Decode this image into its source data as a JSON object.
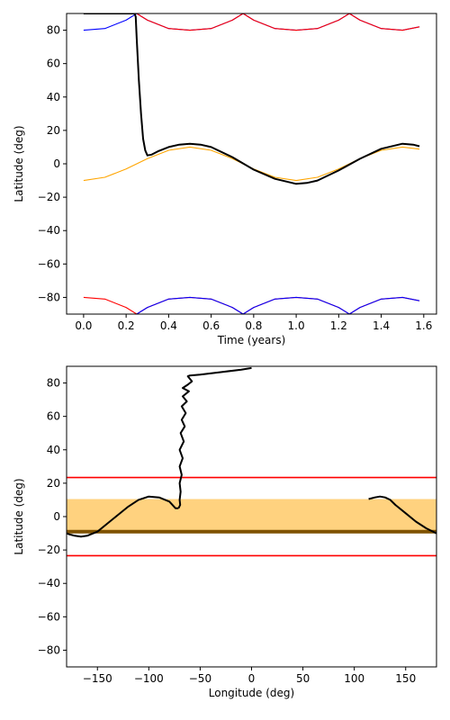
{
  "chart_data": [
    {
      "type": "line",
      "xlabel": "Time (years)",
      "ylabel": "Latitude (deg)",
      "xlim": [
        -0.08,
        1.66
      ],
      "ylim": [
        -90,
        90
      ],
      "xticks": [
        0.0,
        0.2,
        0.4,
        0.6,
        0.8,
        1.0,
        1.2,
        1.4,
        1.6
      ],
      "xtick_labels": [
        "0.0",
        "0.2",
        "0.4",
        "0.6",
        "0.8",
        "1.0",
        "1.2",
        "1.4",
        "1.6"
      ],
      "yticks": [
        -80,
        -60,
        -40,
        -20,
        0,
        20,
        40,
        60,
        80
      ],
      "ytick_labels": [
        "−80",
        "−60",
        "−40",
        "−20",
        "0",
        "20",
        "40",
        "60",
        "80"
      ],
      "grid": false,
      "series": [
        {
          "color": "#0000ff",
          "style": "northern boundary (blue)",
          "x": [
            0.0,
            0.1,
            0.2,
            0.25,
            0.3,
            0.4,
            0.5,
            0.6,
            0.7,
            0.75,
            0.8,
            0.9,
            1.0,
            1.1,
            1.2,
            1.25,
            1.3,
            1.4,
            1.5,
            1.58
          ],
          "y": [
            80,
            81,
            86,
            90,
            86,
            81,
            80,
            81,
            86,
            90,
            86,
            81,
            80,
            81,
            86,
            90,
            86,
            81,
            80,
            82
          ]
        },
        {
          "color": "#ff0000",
          "style": "northern boundary (red)",
          "x": [
            0.25,
            0.3,
            0.4,
            0.5,
            0.6,
            0.7,
            0.75,
            0.8,
            0.9,
            1.0,
            1.1,
            1.2,
            1.25,
            1.3,
            1.4,
            1.5,
            1.58
          ],
          "y": [
            90,
            86,
            81,
            80,
            81,
            86,
            90,
            86,
            81,
            80,
            81,
            86,
            90,
            86,
            81,
            80,
            82
          ]
        },
        {
          "color": "#ff0000",
          "style": "southern boundary (red)",
          "x": [
            0.0,
            0.1,
            0.2,
            0.25,
            0.3,
            0.4,
            0.5,
            0.6,
            0.7,
            0.75,
            0.8,
            0.9,
            1.0,
            1.1,
            1.2,
            1.25,
            1.3,
            1.4,
            1.5,
            1.58
          ],
          "y": [
            -80,
            -81,
            -86,
            -90,
            -86,
            -81,
            -80,
            -81,
            -86,
            -90,
            -86,
            -81,
            -80,
            -81,
            -86,
            -90,
            -86,
            -81,
            -80,
            -82
          ]
        },
        {
          "color": "#0000ff",
          "style": "southern boundary (blue)",
          "x": [
            0.25,
            0.3,
            0.4,
            0.5,
            0.6,
            0.7,
            0.75,
            0.8,
            0.9,
            1.0,
            1.1,
            1.2,
            1.25,
            1.3,
            1.4,
            1.5,
            1.58
          ],
          "y": [
            -90,
            -86,
            -81,
            -80,
            -81,
            -86,
            -90,
            -86,
            -81,
            -80,
            -81,
            -86,
            -90,
            -86,
            -81,
            -80,
            -82
          ]
        },
        {
          "color": "#ffa500",
          "style": "subsolar latitude",
          "x": [
            0.0,
            0.1,
            0.2,
            0.3,
            0.4,
            0.5,
            0.6,
            0.7,
            0.8,
            0.9,
            1.0,
            1.1,
            1.2,
            1.3,
            1.4,
            1.5,
            1.58
          ],
          "y": [
            -10,
            -8.1,
            -3.1,
            3.1,
            8.1,
            10,
            8.1,
            3.1,
            -3.1,
            -8.1,
            -10,
            -8.1,
            -3.1,
            3.1,
            8.1,
            10,
            8.8
          ]
        },
        {
          "color": "#000000",
          "style": "trajectory",
          "x": [
            0.0,
            0.24,
            0.245,
            0.25,
            0.26,
            0.27,
            0.28,
            0.29,
            0.3,
            0.32,
            0.35,
            0.4,
            0.45,
            0.5,
            0.55,
            0.6,
            0.7,
            0.8,
            0.9,
            1.0,
            1.05,
            1.1,
            1.2,
            1.3,
            1.4,
            1.5,
            1.55,
            1.58
          ],
          "y": [
            90,
            90,
            88,
            75,
            50,
            30,
            15,
            8,
            5,
            5.5,
            7.5,
            10,
            11.5,
            12,
            11.5,
            10,
            4,
            -3.5,
            -9,
            -12,
            -11.5,
            -10,
            -4,
            3,
            9,
            12,
            11.5,
            10.5
          ]
        }
      ]
    },
    {
      "type": "line",
      "xlabel": "Longitude (deg)",
      "ylabel": "Latitude (deg)",
      "xlim": [
        -180,
        180
      ],
      "ylim": [
        -90,
        90
      ],
      "xticks": [
        -150,
        -100,
        -50,
        0,
        50,
        100,
        150
      ],
      "xtick_labels": [
        "−150",
        "−100",
        "−50",
        "0",
        "50",
        "100",
        "150"
      ],
      "yticks": [
        -80,
        -60,
        -40,
        -20,
        0,
        20,
        40,
        60,
        80
      ],
      "ytick_labels": [
        "−80",
        "−60",
        "−40",
        "−20",
        "0",
        "20",
        "40",
        "60",
        "80"
      ],
      "grid": false,
      "band": {
        "color": "#ffa500",
        "opacity": 0.5,
        "ymin": -9,
        "ymax": 10.5
      },
      "hlines": [
        {
          "y": 23.4,
          "color": "#ff0000"
        },
        {
          "y": -23.4,
          "color": "#ff0000"
        },
        {
          "y": -9,
          "color": "#7f5200",
          "thick": true
        }
      ],
      "series": [
        {
          "color": "#000000",
          "style": "polar descent",
          "x": [
            0,
            -10,
            -30,
            -50,
            -60,
            -62,
            -58,
            -62,
            -67,
            -61,
            -67,
            -63,
            -68,
            -64,
            -68,
            -65,
            -69,
            -66,
            -70,
            -67,
            -70,
            -68,
            -70,
            -69,
            -70,
            -69.5,
            -71
          ],
          "y": [
            89,
            88,
            86.5,
            85,
            84.5,
            84,
            81,
            79,
            77,
            75,
            72,
            69,
            66,
            62,
            58,
            54,
            50,
            45,
            40,
            35,
            30,
            25,
            20,
            15,
            10,
            7,
            5
          ]
        },
        {
          "color": "#000000",
          "style": "trajectory west",
          "x": [
            -71,
            -74,
            -80,
            -90,
            -100,
            -110,
            -120,
            -130,
            -140,
            -150,
            -160,
            -166,
            -172,
            -178,
            -180
          ],
          "y": [
            5,
            5,
            9,
            11.5,
            12,
            10,
            6,
            1,
            -4,
            -9,
            -11.5,
            -12,
            -11.5,
            -10.5,
            -10
          ]
        },
        {
          "color": "#000000",
          "style": "trajectory east",
          "x": [
            114,
            120,
            125,
            130,
            135,
            140,
            150,
            160,
            170,
            180
          ],
          "y": [
            10.5,
            11.5,
            12,
            11.5,
            10,
            7,
            2,
            -3,
            -7,
            -10
          ]
        }
      ]
    }
  ]
}
